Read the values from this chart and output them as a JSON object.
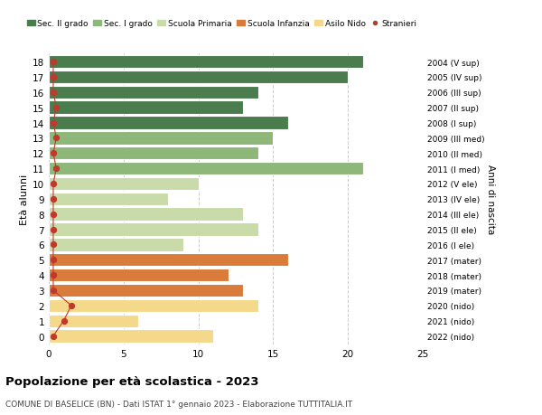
{
  "ages": [
    18,
    17,
    16,
    15,
    14,
    13,
    12,
    11,
    10,
    9,
    8,
    7,
    6,
    5,
    4,
    3,
    2,
    1,
    0
  ],
  "bar_values": [
    21,
    20,
    14,
    13,
    16,
    15,
    14,
    21,
    10,
    8,
    13,
    14,
    9,
    16,
    12,
    13,
    14,
    6,
    11
  ],
  "bar_colors": [
    "#4a7c4e",
    "#4a7c4e",
    "#4a7c4e",
    "#4a7c4e",
    "#4a7c4e",
    "#8db87a",
    "#8db87a",
    "#8db87a",
    "#c8dba8",
    "#c8dba8",
    "#c8dba8",
    "#c8dba8",
    "#c8dba8",
    "#d97b3a",
    "#d97b3a",
    "#d97b3a",
    "#f5d98b",
    "#f5d98b",
    "#f5d98b"
  ],
  "stranieri_x": [
    0.3,
    0.3,
    0.3,
    0.5,
    0.3,
    0.5,
    0.3,
    0.5,
    0.3,
    0.3,
    0.3,
    0.3,
    0.3,
    0.3,
    0.3,
    0.3,
    1.5,
    1.0,
    0.3
  ],
  "right_labels": [
    "2004 (V sup)",
    "2005 (IV sup)",
    "2006 (III sup)",
    "2007 (II sup)",
    "2008 (I sup)",
    "2009 (III med)",
    "2010 (II med)",
    "2011 (I med)",
    "2012 (V ele)",
    "2013 (IV ele)",
    "2014 (III ele)",
    "2015 (II ele)",
    "2016 (I ele)",
    "2017 (mater)",
    "2018 (mater)",
    "2019 (mater)",
    "2020 (nido)",
    "2021 (nido)",
    "2022 (nido)"
  ],
  "legend_labels": [
    "Sec. II grado",
    "Sec. I grado",
    "Scuola Primaria",
    "Scuola Infanzia",
    "Asilo Nido",
    "Stranieri"
  ],
  "legend_colors": [
    "#4a7c4e",
    "#8db87a",
    "#c8dba8",
    "#d97b3a",
    "#f5d98b",
    "#c0392b"
  ],
  "ylabel": "Età alunni",
  "right_ylabel": "Anni di nascita",
  "title": "Popolazione per età scolastica - 2023",
  "subtitle": "COMUNE DI BASELICE (BN) - Dati ISTAT 1° gennaio 2023 - Elaborazione TUTTITALIA.IT",
  "xlim": [
    0,
    25
  ],
  "xticks": [
    0,
    5,
    10,
    15,
    20,
    25
  ],
  "background_color": "#ffffff",
  "grid_color": "#cccccc",
  "stranieri_color": "#c0392b",
  "stranieri_line_color": "#c0392b"
}
